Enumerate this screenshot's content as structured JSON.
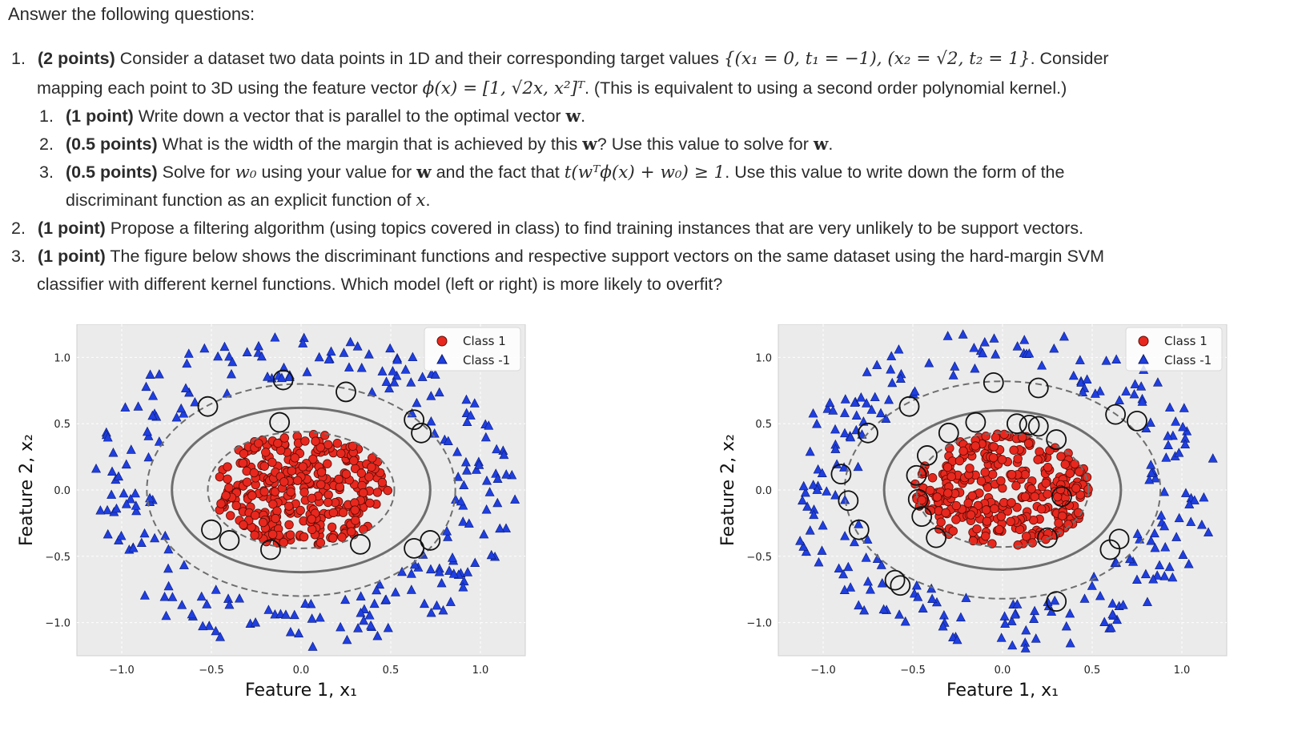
{
  "intro": "Answer the following questions:",
  "questions": [
    {
      "number": "1.",
      "points": "(2 points)",
      "text_a": " Consider a dataset two data points in 1D and their corresponding target values ",
      "dataset_math": "{(x₁ = 0, t₁ = −1), (x₂ = √2, t₂ = 1}",
      "text_b": ". Consider",
      "line2_a": "mapping each point to 3D using the feature vector ",
      "feature_math": "ϕ(x) = [1, √2x, x²]ᵀ",
      "line2_b": ". (This is equivalent to using a second order polynomial kernel.)",
      "subs": [
        {
          "number": "1.",
          "points": "(1 point)",
          "text": " Write down a vector that is parallel to the optimal vector ",
          "w": "w",
          "end": "."
        },
        {
          "number": "2.",
          "points": "(0.5 points)",
          "text": " What is the width of the margin that is achieved by this ",
          "w": "w",
          "mid": "? Use this value to solve for ",
          "w2": "w",
          "end": "."
        },
        {
          "number": "3.",
          "points": "(0.5 points)",
          "text_a": " Solve for ",
          "w0": "w₀",
          "text_b": " using your value for ",
          "w": "w",
          "text_c": " and the fact that ",
          "cond": "t(wᵀϕ(x) + w₀) ≥ 1",
          "text_d": ". Use this value to write down the form of the",
          "line2": "discriminant function as an explicit function of ",
          "x": "x",
          "end": "."
        }
      ]
    },
    {
      "number": "2.",
      "points": "(1 point)",
      "text": " Propose a filtering algorithm (using topics covered in class) to find training instances that are very unlikely to be support vectors."
    },
    {
      "number": "3.",
      "points": "(1 point)",
      "text": " The figure below shows the discriminant functions and respective support vectors on the same dataset using the hard-margin SVM",
      "line2": "classifier with different kernel functions. Which model (left or right) is more likely to overfit?"
    }
  ],
  "chart_data": [
    {
      "type": "scatter",
      "panel": "left",
      "xlabel": "Feature 1, x₁",
      "ylabel": "Feature 2, x₂",
      "xticks": [
        "−1.0",
        "−0.5",
        "0.0",
        "0.5",
        "1.0"
      ],
      "yticks": [
        "1.0",
        "0.5",
        "0.0",
        "−0.5",
        "−1.0"
      ],
      "xlim": [
        -1.25,
        1.25
      ],
      "ylim": [
        -1.25,
        1.25
      ],
      "grid": true,
      "legend_position": "top-right",
      "series": [
        {
          "name": "Class 1",
          "marker": "circle",
          "color": "#e8281e",
          "region": "inner disk, radius ≤ 0.5"
        },
        {
          "name": "Class -1",
          "marker": "triangle",
          "color": "#1f3fe0",
          "region": "ring, radius 0.8–1.2"
        }
      ],
      "decision_boundary": {
        "shape": "ellipse",
        "rx": 0.72,
        "ry": 0.62
      },
      "margins": [
        {
          "rx": 0.52,
          "ry": 0.44
        },
        {
          "rx": 0.86,
          "ry": 0.8
        }
      ],
      "support_vectors": [
        [
          -0.52,
          0.63
        ],
        [
          -0.1,
          0.83
        ],
        [
          0.25,
          0.74
        ],
        [
          0.63,
          0.53
        ],
        [
          0.67,
          0.43
        ],
        [
          -0.12,
          0.51
        ],
        [
          -0.5,
          -0.3
        ],
        [
          -0.4,
          -0.38
        ],
        [
          -0.17,
          -0.45
        ],
        [
          0.33,
          -0.41
        ],
        [
          0.63,
          -0.44
        ],
        [
          0.72,
          -0.38
        ]
      ]
    },
    {
      "type": "scatter",
      "panel": "right",
      "xlabel": "Feature 1, x₁",
      "ylabel": "Feature 2, x₂",
      "xticks": [
        "−1.0",
        "−0.5",
        "0.0",
        "0.5",
        "1.0"
      ],
      "yticks": [
        "1.0",
        "0.5",
        "0.0",
        "−0.5",
        "−1.0"
      ],
      "xlim": [
        -1.25,
        1.25
      ],
      "ylim": [
        -1.25,
        1.25
      ],
      "grid": true,
      "legend_position": "top-right",
      "series": [
        {
          "name": "Class 1",
          "marker": "circle",
          "color": "#e8281e",
          "region": "inner disk, radius ≤ 0.5"
        },
        {
          "name": "Class -1",
          "marker": "triangle",
          "color": "#1f3fe0",
          "region": "ring, radius 0.8–1.2"
        }
      ],
      "decision_boundary": {
        "shape": "ellipse",
        "rx": 0.66,
        "ry": 0.6
      },
      "margins": [
        {
          "rx": 0.48,
          "ry": 0.43
        },
        {
          "rx": 0.88,
          "ry": 0.82
        }
      ],
      "support_vectors": [
        [
          -0.52,
          0.63
        ],
        [
          -0.05,
          0.81
        ],
        [
          0.2,
          0.77
        ],
        [
          -0.75,
          0.43
        ],
        [
          -0.9,
          0.12
        ],
        [
          -0.86,
          -0.08
        ],
        [
          -0.8,
          -0.3
        ],
        [
          -0.42,
          0.26
        ],
        [
          -0.48,
          0.11
        ],
        [
          -0.47,
          -0.07
        ],
        [
          -0.45,
          -0.2
        ],
        [
          -0.37,
          -0.36
        ],
        [
          -0.6,
          -0.68
        ],
        [
          -0.57,
          -0.72
        ],
        [
          -0.3,
          0.43
        ],
        [
          -0.15,
          0.51
        ],
        [
          0.08,
          0.5
        ],
        [
          0.15,
          0.49
        ],
        [
          0.2,
          0.48
        ],
        [
          0.3,
          0.38
        ],
        [
          0.33,
          -0.05
        ],
        [
          0.25,
          -0.36
        ],
        [
          0.65,
          -0.37
        ],
        [
          0.6,
          -0.45
        ],
        [
          0.3,
          -0.84
        ],
        [
          0.75,
          0.52
        ],
        [
          0.63,
          0.57
        ]
      ]
    }
  ]
}
